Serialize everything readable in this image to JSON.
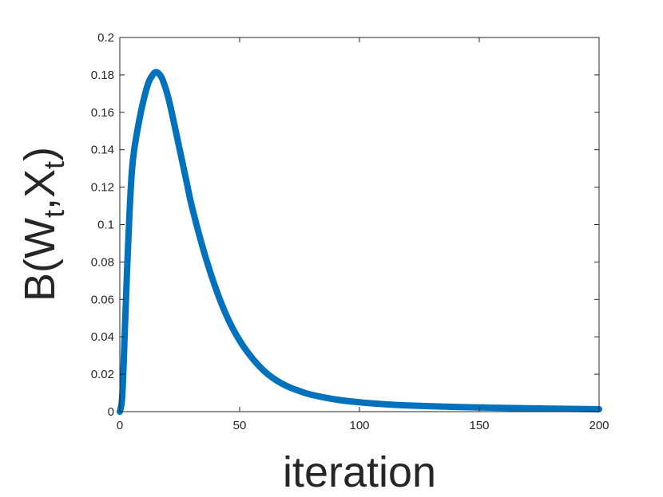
{
  "chart_data": {
    "type": "line",
    "title": "",
    "xlabel": "iteration",
    "ylabel": {
      "base": "B(W",
      "sub1": "t",
      "mid": ",X",
      "sub2": "t",
      "end": ")"
    },
    "xlim": [
      0,
      200
    ],
    "ylim": [
      0,
      0.2
    ],
    "x_ticks": [
      0,
      50,
      100,
      150,
      200
    ],
    "x_tick_labels": [
      "0",
      "50",
      "100",
      "150",
      "200"
    ],
    "y_ticks": [
      0,
      0.02,
      0.04,
      0.06,
      0.08,
      0.1,
      0.12,
      0.14,
      0.16,
      0.18,
      0.2
    ],
    "y_tick_labels": [
      "0",
      "0.02",
      "0.04",
      "0.06",
      "0.08",
      "0.1",
      "0.12",
      "0.14",
      "0.16",
      "0.18",
      "0.2"
    ],
    "grid": false,
    "series": [
      {
        "color": "#0072BD",
        "x": [
          0,
          1,
          2,
          3,
          4,
          5,
          6,
          8,
          10,
          12,
          14,
          15,
          16,
          17,
          18,
          20,
          22,
          25,
          28,
          30,
          35,
          40,
          45,
          50,
          55,
          60,
          65,
          70,
          75,
          80,
          90,
          100,
          110,
          120,
          140,
          160,
          180,
          200
        ],
        "y": [
          0,
          0.008,
          0.04,
          0.075,
          0.105,
          0.128,
          0.14,
          0.155,
          0.167,
          0.176,
          0.1805,
          0.1815,
          0.181,
          0.1795,
          0.177,
          0.169,
          0.158,
          0.14,
          0.122,
          0.11,
          0.086,
          0.066,
          0.05,
          0.038,
          0.029,
          0.022,
          0.017,
          0.0135,
          0.011,
          0.009,
          0.0065,
          0.005,
          0.004,
          0.0033,
          0.0025,
          0.002,
          0.0016,
          0.0013
        ]
      }
    ]
  }
}
